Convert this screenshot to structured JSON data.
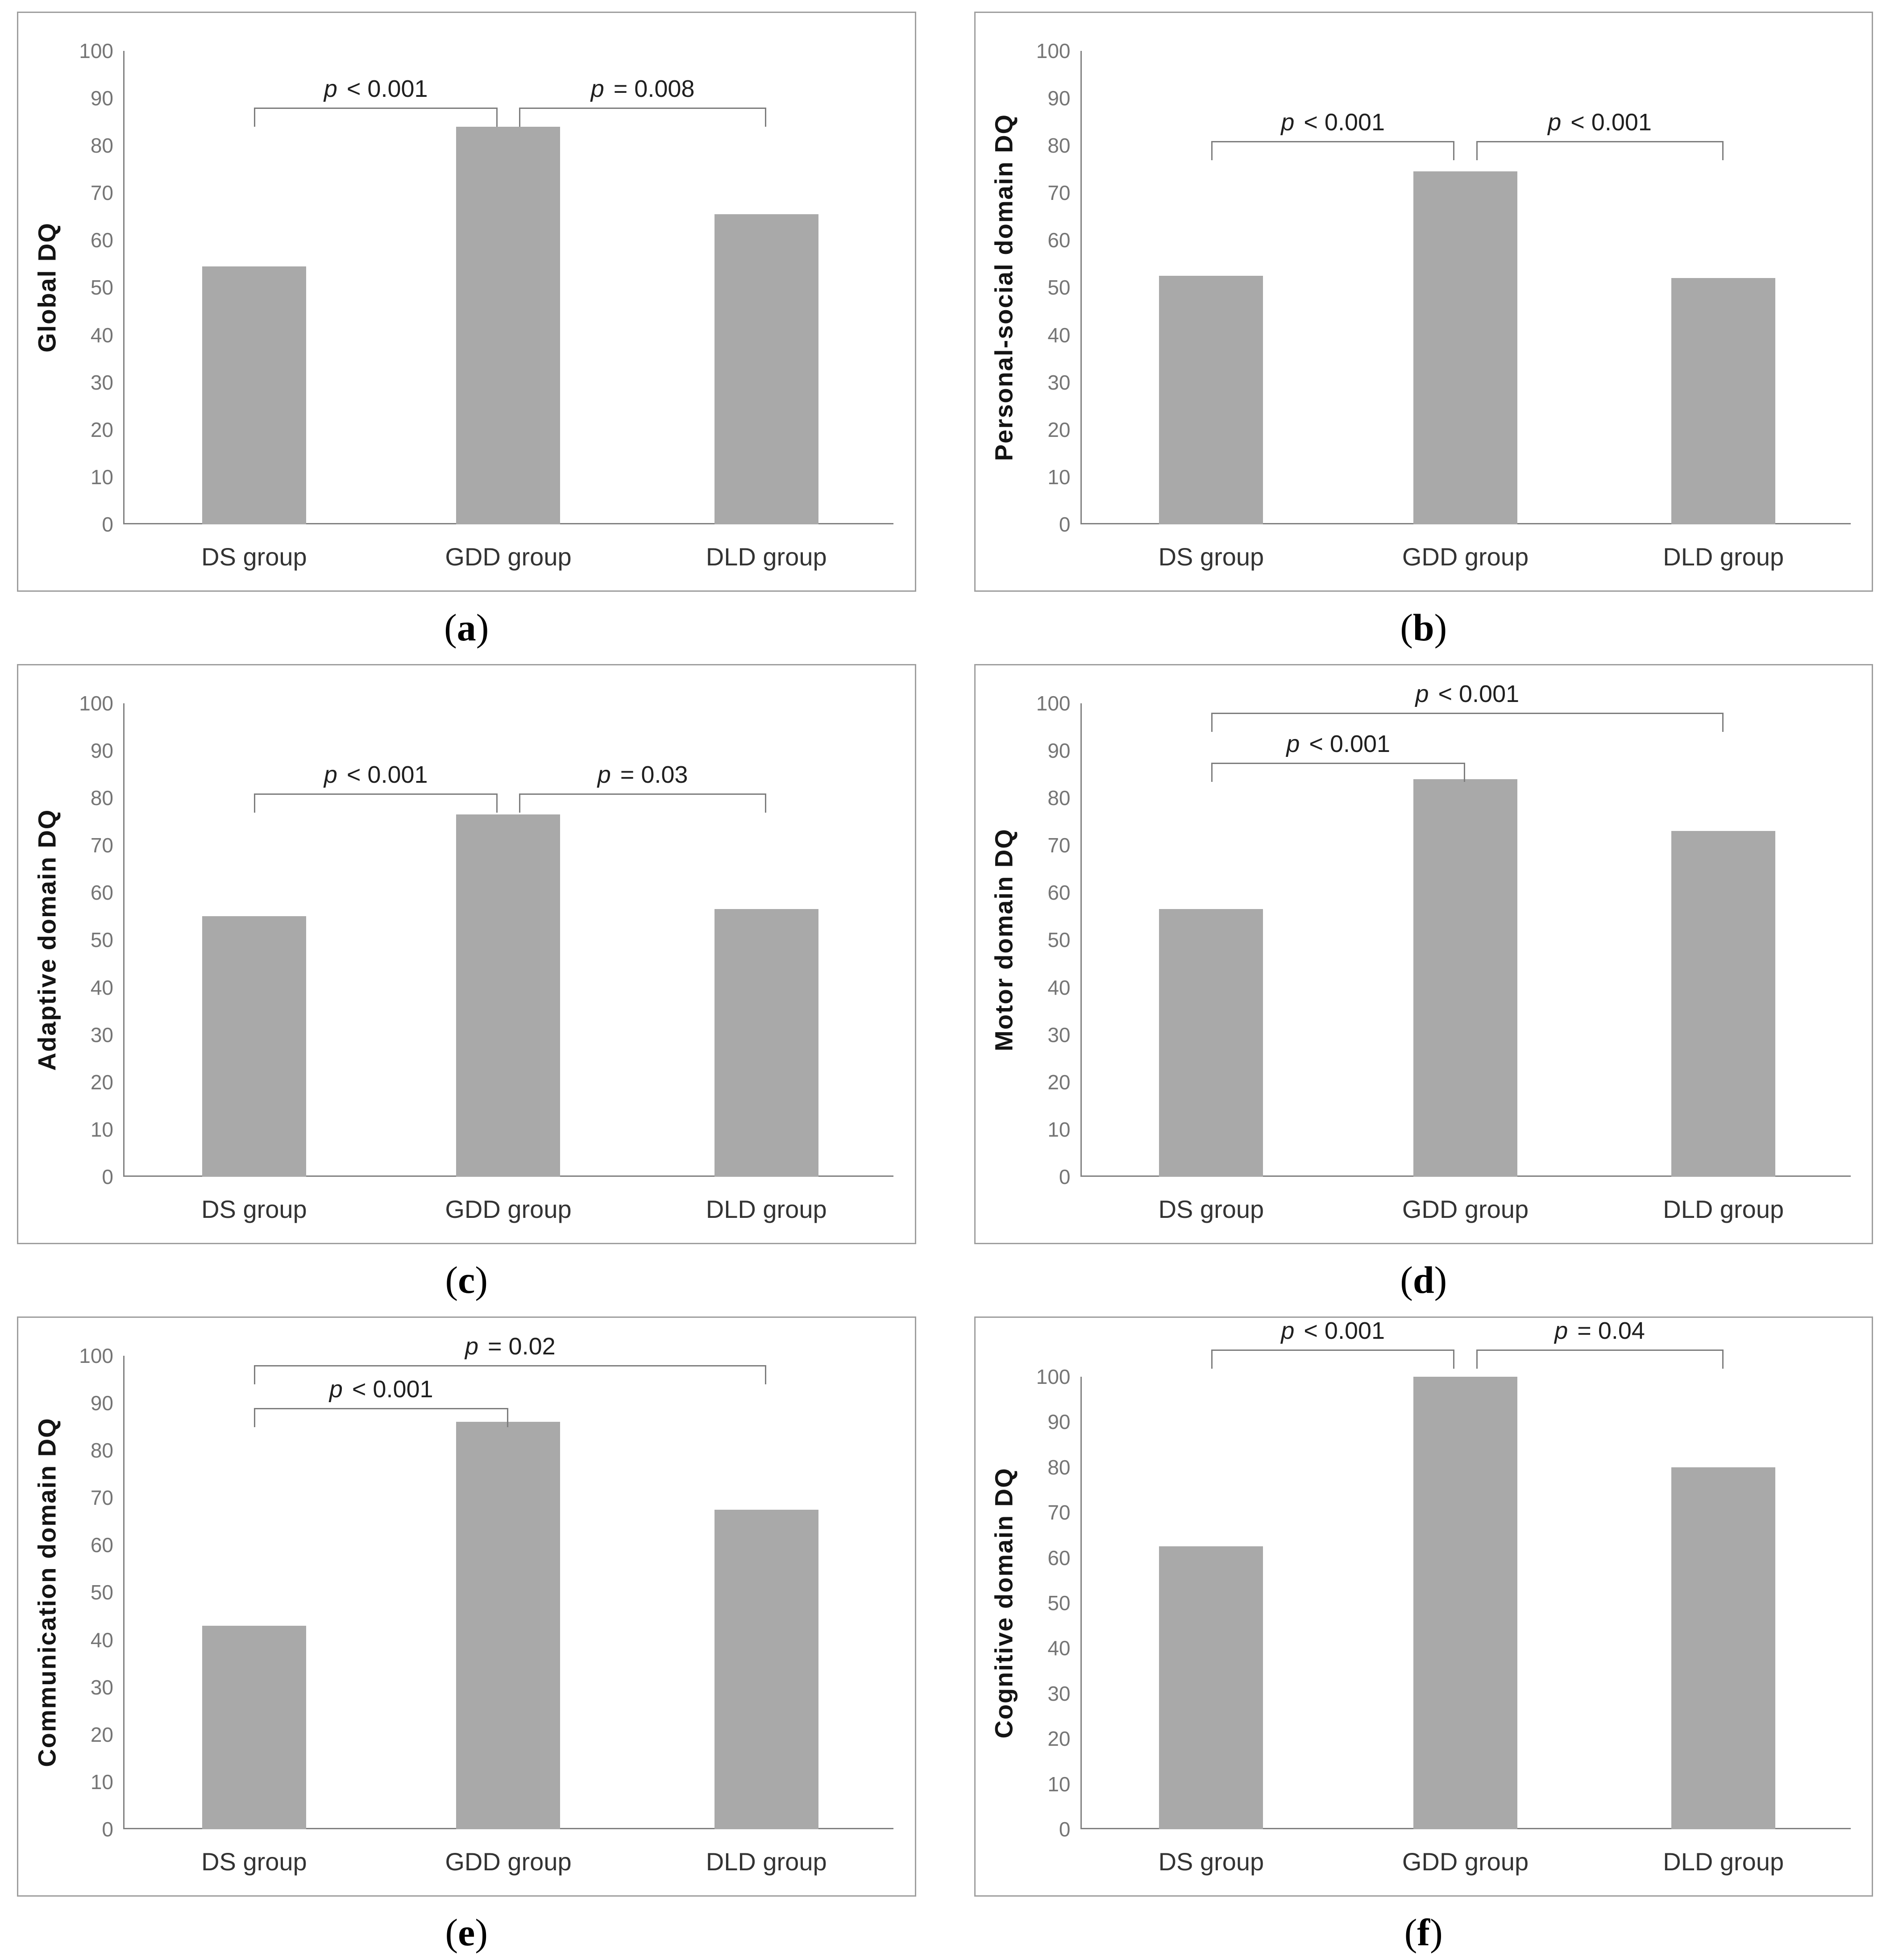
{
  "figure": {
    "groups": [
      "DS group",
      "GDD group",
      "DLD group"
    ],
    "colors": {
      "bar": "#a9a9a9",
      "axis": "#808080",
      "bracket": "#7d7d7d",
      "tick_text": "#757575",
      "x_label_text": "#333333",
      "p_text": "#1f1f1f",
      "panel_border": "#9e9e9e"
    }
  },
  "chart_data": [
    {
      "type": "bar",
      "panel": "a",
      "caption": "(a)",
      "ylabel": "Global DQ",
      "xlabel": "",
      "categories": [
        "DS group",
        "GDD group",
        "DLD group"
      ],
      "values": [
        54.5,
        84,
        65.5
      ],
      "ylim": [
        0,
        100
      ],
      "ytick_step": 10,
      "grid": false,
      "headroom_units": 8,
      "annotations": [
        {
          "type": "bracket",
          "between": [
            "DS group",
            "GDD group"
          ],
          "y": 88,
          "label": "p < 0.001"
        },
        {
          "type": "bracket",
          "between": [
            "GDD group",
            "DLD group"
          ],
          "y": 88,
          "label": "p = 0.008"
        }
      ]
    },
    {
      "type": "bar",
      "panel": "b",
      "caption": "(b)",
      "ylabel": "Personal-social domain DQ",
      "xlabel": "",
      "categories": [
        "DS group",
        "GDD group",
        "DLD group"
      ],
      "values": [
        52.5,
        74.5,
        52
      ],
      "ylim": [
        0,
        100
      ],
      "ytick_step": 10,
      "grid": false,
      "headroom_units": 8,
      "annotations": [
        {
          "type": "bracket",
          "between": [
            "DS group",
            "GDD group"
          ],
          "y": 81,
          "label": "p < 0.001"
        },
        {
          "type": "bracket",
          "between": [
            "GDD group",
            "DLD group"
          ],
          "y": 81,
          "label": "p < 0.001"
        }
      ]
    },
    {
      "type": "bar",
      "panel": "c",
      "caption": "(c)",
      "ylabel": "Adaptive domain DQ",
      "xlabel": "",
      "categories": [
        "DS group",
        "GDD group",
        "DLD group"
      ],
      "values": [
        55,
        76.5,
        56.5
      ],
      "ylim": [
        0,
        100
      ],
      "ytick_step": 10,
      "grid": false,
      "headroom_units": 8,
      "annotations": [
        {
          "type": "bracket",
          "between": [
            "DS group",
            "GDD group"
          ],
          "y": 81,
          "label": "p < 0.001"
        },
        {
          "type": "bracket",
          "between": [
            "GDD group",
            "DLD group"
          ],
          "y": 81,
          "label": "p = 0.03"
        }
      ]
    },
    {
      "type": "bar",
      "panel": "d",
      "caption": "(d)",
      "ylabel": "Motor domain DQ",
      "xlabel": "",
      "categories": [
        "DS group",
        "GDD group",
        "DLD group"
      ],
      "values": [
        56.5,
        84,
        73
      ],
      "ylim": [
        0,
        100
      ],
      "ytick_step": 10,
      "grid": false,
      "headroom_units": 8,
      "annotations": [
        {
          "type": "bracket",
          "between": [
            "DS group",
            "GDD group"
          ],
          "y": 87.5,
          "label": "p < 0.001"
        },
        {
          "type": "bracket",
          "between": [
            "DS group",
            "DLD group"
          ],
          "y": 98,
          "label": "p < 0.001"
        }
      ]
    },
    {
      "type": "bar",
      "panel": "e",
      "caption": "(e)",
      "ylabel": "Communication domain DQ",
      "xlabel": "",
      "categories": [
        "DS group",
        "GDD group",
        "DLD group"
      ],
      "values": [
        43,
        86,
        67.5
      ],
      "ylim": [
        0,
        100
      ],
      "ytick_step": 10,
      "grid": false,
      "headroom_units": 8,
      "annotations": [
        {
          "type": "bracket",
          "between": [
            "DS group",
            "GDD group"
          ],
          "y": 89,
          "label": "p < 0.001"
        },
        {
          "type": "bracket",
          "between": [
            "DS group",
            "DLD group"
          ],
          "y": 98,
          "label": "p = 0.02"
        }
      ]
    },
    {
      "type": "bar",
      "panel": "f",
      "caption": "(f)",
      "ylabel": "Cognitive domain DQ",
      "xlabel": "",
      "categories": [
        "DS group",
        "GDD group",
        "DLD group"
      ],
      "values": [
        62.5,
        100,
        80
      ],
      "ylim": [
        0,
        100
      ],
      "ytick_step": 10,
      "grid": false,
      "headroom_units": 13,
      "annotations": [
        {
          "type": "bracket",
          "between": [
            "DS group",
            "GDD group"
          ],
          "y": 106,
          "label": "p < 0.001"
        },
        {
          "type": "bracket",
          "between": [
            "GDD group",
            "DLD group"
          ],
          "y": 106,
          "label": "p = 0.04"
        }
      ]
    }
  ]
}
